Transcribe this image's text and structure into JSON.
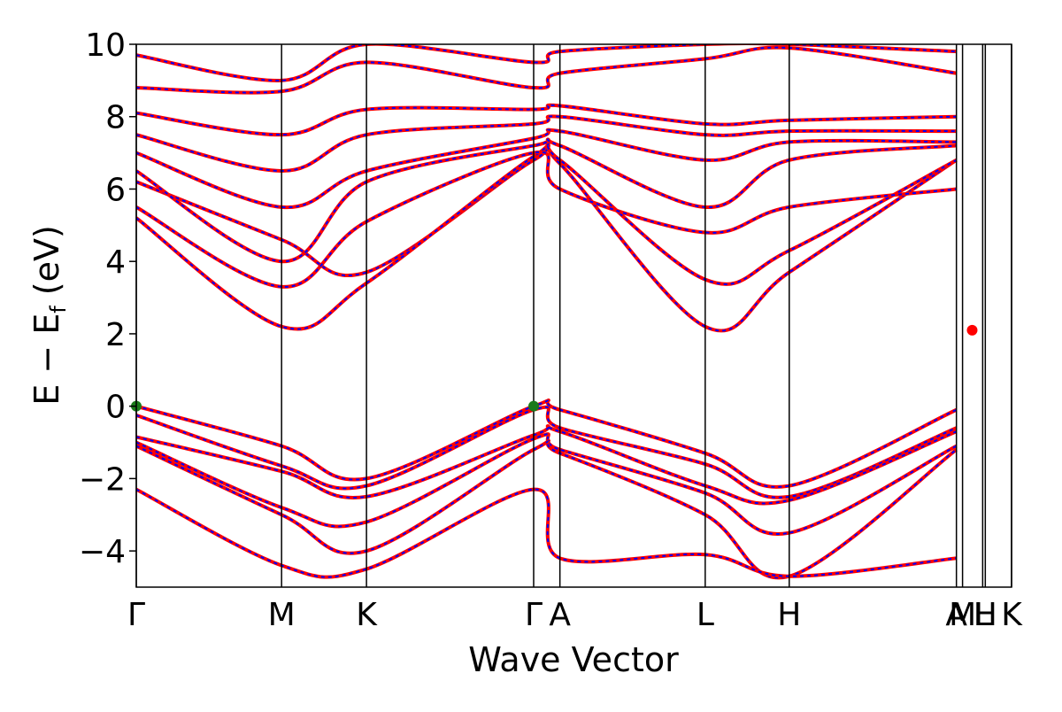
{
  "chart_data": {
    "type": "line",
    "title": "",
    "xlabel": "Wave Vector",
    "ylabel": "E − E",
    "ylabel_subscript": "f",
    "ylabel_unit": " (eV)",
    "ylim": [
      -5,
      10
    ],
    "yticks": [
      -4,
      -2,
      0,
      2,
      4,
      6,
      8,
      10
    ],
    "xlim": [
      0,
      1
    ],
    "kpoints": [
      {
        "label": "Γ",
        "x": 0.0
      },
      {
        "label": "M",
        "x": 0.166
      },
      {
        "label": "K",
        "x": 0.263
      },
      {
        "label": "Γ",
        "x": 0.454
      },
      {
        "label": "A",
        "x": 0.484
      },
      {
        "label": "L",
        "x": 0.65
      },
      {
        "label": "H",
        "x": 0.746
      },
      {
        "label": "A",
        "x": 0.937
      },
      {
        "label": "M",
        "x": 0.944
      },
      {
        "label": "L",
        "x": 0.967
      },
      {
        "label": "H",
        "x": 0.97
      },
      {
        "label": "K",
        "x": 1.0
      }
    ],
    "grid": false,
    "colors": {
      "band_solid": "#ff0000",
      "band_dashed": "#0000ff",
      "vbm_marker": "#1a7a1a",
      "cbm_marker": "#ff0000",
      "kline": "#000000"
    },
    "series": [
      {
        "x": [
          0,
          0.166,
          0.263,
          0.454,
          0.484,
          0.65,
          0.746,
          0.937
        ],
        "values": [
          0,
          -1.1,
          -2.0,
          0,
          -0.1,
          -1.3,
          -2.2,
          -0.1
        ]
      },
      {
        "x": [
          0,
          0.166,
          0.263,
          0.454,
          0.484,
          0.65,
          0.746,
          0.937
        ],
        "values": [
          -0.25,
          -1.65,
          -2.2,
          -0.1,
          -0.6,
          -1.6,
          -2.5,
          -0.6
        ]
      },
      {
        "x": [
          0,
          0.166,
          0.263,
          0.454,
          0.484,
          0.65,
          0.746,
          0.937
        ],
        "values": [
          -0.85,
          -1.8,
          -2.5,
          -0.8,
          -0.7,
          -2.2,
          -2.6,
          -0.7
        ]
      },
      {
        "x": [
          0,
          0.166,
          0.263,
          0.454,
          0.484,
          0.65,
          0.746,
          0.937
        ],
        "values": [
          -1.0,
          -2.8,
          -3.2,
          -0.9,
          -1.2,
          -2.4,
          -3.5,
          -1.1
        ]
      },
      {
        "x": [
          0,
          0.166,
          0.263,
          0.454,
          0.484,
          0.65,
          0.746,
          0.937
        ],
        "values": [
          -1.1,
          -3.0,
          -4.0,
          -1.2,
          -1.3,
          -3.0,
          -4.7,
          -1.2
        ]
      },
      {
        "x": [
          0,
          0.166,
          0.263,
          0.454,
          0.484,
          0.65,
          0.746,
          0.937
        ],
        "values": [
          -2.3,
          -4.4,
          -4.5,
          -2.3,
          -4.2,
          -4.1,
          -4.7,
          -4.2
        ]
      },
      {
        "x": [
          0,
          0.166,
          0.263,
          0.454,
          0.484,
          0.65,
          0.746,
          0.937
        ],
        "values": [
          6.2,
          4.6,
          3.7,
          6.8,
          6.7,
          2.2,
          3.7,
          6.8
        ]
      },
      {
        "x": [
          0,
          0.166,
          0.263,
          0.454,
          0.484,
          0.65,
          0.746,
          0.937
        ],
        "values": [
          5.2,
          2.2,
          3.4,
          6.9,
          6.8,
          3.5,
          4.3,
          6.8
        ]
      },
      {
        "x": [
          0,
          0.166,
          0.263,
          0.454,
          0.484,
          0.65,
          0.746,
          0.937
        ],
        "values": [
          5.5,
          3.3,
          5.1,
          7.0,
          6.0,
          4.8,
          5.5,
          6.0
        ]
      },
      {
        "x": [
          0,
          0.166,
          0.263,
          0.454,
          0.484,
          0.65,
          0.746,
          0.937
        ],
        "values": [
          6.5,
          4.0,
          6.2,
          7.2,
          7.2,
          5.5,
          6.8,
          7.2
        ]
      },
      {
        "x": [
          0,
          0.166,
          0.263,
          0.454,
          0.484,
          0.65,
          0.746,
          0.937
        ],
        "values": [
          7.0,
          5.5,
          6.5,
          7.4,
          7.6,
          6.8,
          7.3,
          7.3
        ]
      },
      {
        "x": [
          0,
          0.166,
          0.263,
          0.454,
          0.484,
          0.65,
          0.746,
          0.937
        ],
        "values": [
          7.5,
          6.5,
          7.5,
          7.8,
          8.0,
          7.5,
          7.6,
          7.6
        ]
      },
      {
        "x": [
          0,
          0.166,
          0.263,
          0.454,
          0.484,
          0.65,
          0.746,
          0.937
        ],
        "values": [
          8.1,
          7.5,
          8.2,
          8.2,
          8.3,
          7.8,
          7.9,
          8.0
        ]
      },
      {
        "x": [
          0,
          0.166,
          0.263,
          0.454,
          0.484,
          0.65,
          0.746,
          0.937
        ],
        "values": [
          8.8,
          8.7,
          9.5,
          8.8,
          9.2,
          9.6,
          9.9,
          9.2
        ]
      },
      {
        "x": [
          0,
          0.166,
          0.263,
          0.454,
          0.484,
          0.65,
          0.746,
          0.937
        ],
        "values": [
          9.7,
          9.0,
          10.0,
          9.5,
          9.8,
          10.0,
          10.0,
          9.8
        ]
      }
    ],
    "markers": [
      {
        "type": "vbm",
        "x": 0.0,
        "y": 0.0
      },
      {
        "type": "vbm",
        "x": 0.454,
        "y": 0.0
      },
      {
        "type": "cbm",
        "x": 0.955,
        "y": 2.1
      }
    ]
  }
}
